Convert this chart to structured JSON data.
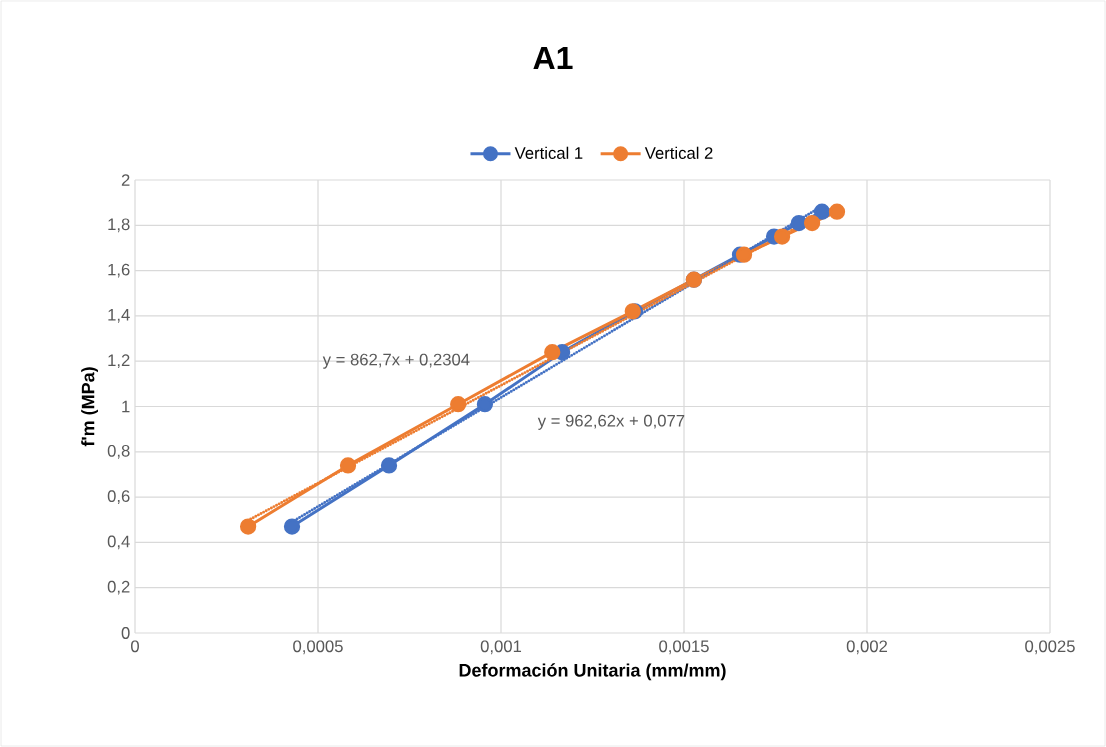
{
  "chart_data": {
    "type": "line",
    "title": "A1",
    "xlabel": "Deformación Unitaria (mm/mm)",
    "ylabel": "f'm (MPa)",
    "xlim": [
      0,
      0.0025
    ],
    "ylim": [
      0,
      2
    ],
    "xticks": [
      0,
      {
        "value": 0.0005,
        "label": "0,0005"
      },
      {
        "value": 0.001,
        "label": "0,001"
      },
      {
        "value": 0.0015,
        "label": "0,0015"
      },
      {
        "value": 0.002,
        "label": "0,002"
      },
      {
        "value": 0.0025,
        "label": "0,0025"
      }
    ],
    "yticks": [
      0,
      {
        "value": 0.2,
        "label": "0,2"
      },
      {
        "value": 0.4,
        "label": "0,4"
      },
      {
        "value": 0.6,
        "label": "0,6"
      },
      {
        "value": 0.8,
        "label": "0,8"
      },
      1,
      {
        "value": 1.2,
        "label": "1,2"
      },
      {
        "value": 1.4,
        "label": "1,4"
      },
      {
        "value": 1.6,
        "label": "1,6"
      },
      {
        "value": 1.8,
        "label": "1,8"
      },
      2
    ],
    "grid": true,
    "legend": "top",
    "series": [
      {
        "name": "Vertical 1",
        "color": "#4472c4",
        "marker": "circle",
        "line_style": "solid",
        "x": [
          0.000429,
          0.000694,
          0.000956,
          0.001167,
          0.001366,
          0.001527,
          0.001653,
          0.001746,
          0.001814,
          0.001877
        ],
        "values": [
          0.47,
          0.74,
          1.01,
          1.24,
          1.42,
          1.56,
          1.67,
          1.75,
          1.81,
          1.86
        ]
      },
      {
        "name": "Vertical 2",
        "color": "#ed7d31",
        "marker": "circle",
        "line_style": "solid",
        "x": [
          0.000309,
          0.000582,
          0.000883,
          0.00114,
          0.00136,
          0.001527,
          0.001664,
          0.001768,
          0.00185,
          0.001918
        ],
        "values": [
          0.47,
          0.74,
          1.01,
          1.24,
          1.42,
          1.56,
          1.67,
          1.75,
          1.81,
          1.86
        ]
      },
      {
        "color": "#4472c4",
        "marker": "none",
        "line_style": "dotted",
        "x": [
          0.000429,
          0.001877
        ],
        "values": [
          0.49,
          1.884
        ]
      },
      {
        "color": "#ed7d31",
        "marker": "none",
        "line_style": "dotted",
        "x": [
          0.000309,
          0.001918
        ],
        "values": [
          0.497,
          1.885
        ]
      }
    ],
    "annotations": [
      "y = 862,7x + 0,2304",
      "y = 962,62x + 0,077"
    ]
  }
}
